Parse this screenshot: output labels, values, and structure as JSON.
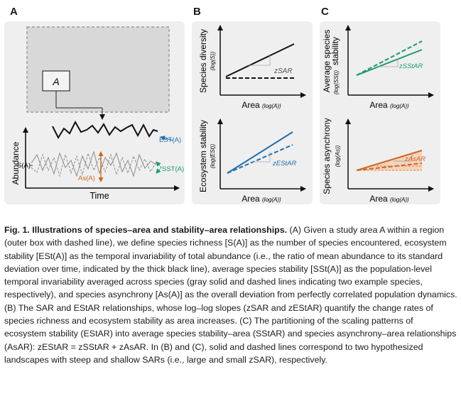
{
  "panels": {
    "a": {
      "letter": "A",
      "inset_label": "A",
      "y_axis_label": "Abundance",
      "x_axis_label": "Time",
      "est_label": "EST(A)",
      "s_label": "S(A)",
      "as_label": "As(A)",
      "sst_label": "SST(A)"
    },
    "b": {
      "letter": "B",
      "top": {
        "y_label": "Species diversity",
        "y_sub": "(log(S))",
        "x_label": "Area",
        "x_sub": "(log(A))",
        "slope_label": "zSAR"
      },
      "bottom": {
        "y_label": "Ecosystem stability",
        "y_sub": "(log(ESt))",
        "x_label": "Area",
        "x_sub": "(log(A))",
        "slope_label": "zEStAR"
      }
    },
    "c": {
      "letter": "C",
      "top": {
        "y_label": "Average species",
        "y_label2": "stability",
        "y_sub": "(log(SSt))",
        "x_label": "Area",
        "x_sub": "(log(A))",
        "slope_label": "zSStAR"
      },
      "bottom": {
        "y_label": "Species asynchrony",
        "y_sub": "(log(As))",
        "x_label": "Area",
        "x_sub": "(log(A))",
        "slope_label": "zAsAR"
      }
    }
  },
  "caption": {
    "fig_label": "Fig. 1.",
    "title": "Illustrations of species–area and stability–area relationships.",
    "p1": "(A) Given a study area A within a region (outer box with dashed line), we define species richness [S(A)] as the number of species encountered, ecosystem stability [ESt(A)] as the temporal invariability of total abundance (i.e., the ratio of mean abundance to its standard deviation over time, indicated by the thick black line), average species stability [SSt(A)] as the population-level temporal invariability averaged across species (gray solid and dashed lines indicating two example species, respectively), and species asynchrony [As(A)] as the overall deviation from perfectly correlated population dynamics.",
    "p2": "(B) The SAR and EStAR relationships, whose log–log slopes (zSAR and zEStAR) quantify the change rates of species richness and ecosystem stability as area increases.",
    "p3": "(C) The partitioning of the scaling patterns of ecosystem stability (EStAR) into average species stability–area (SStAR) and species asynchrony–area relationships (AsAR): zEStAR = zSStAR + zAsAR. In (B) and (C), solid and dashed lines correspond to two hypothesized landscapes with steep and shallow SARs (i.e., large and small zSAR), respectively."
  },
  "colors": {
    "black": "#111111",
    "blue": "#1f6fb0",
    "green": "#1a9a6b",
    "orange": "#d2651d",
    "gray": "#8a8a8a",
    "panel_bg": "#efefef"
  }
}
